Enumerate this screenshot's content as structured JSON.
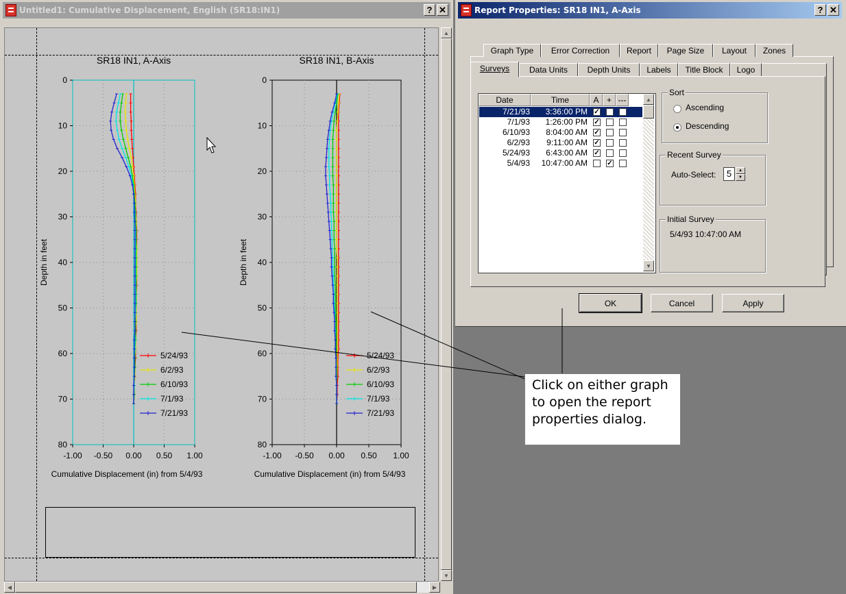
{
  "document_window": {
    "title": "Untitled1: Cumulative Displacement, English (SR18:IN1)",
    "help_button": "?",
    "close_button": "✕"
  },
  "charts": [
    {
      "title": "SR18 IN1, A-Axis",
      "ylabel": "Depth in feet",
      "xlabel": "Cumulative Displacement (in) from 5/4/93",
      "yticks": [
        "0",
        "10",
        "20",
        "30",
        "40",
        "50",
        "60",
        "70",
        "80"
      ],
      "xticks": [
        "-1.00",
        "-0.50",
        "0.00",
        "0.50",
        "1.00"
      ]
    },
    {
      "title": "SR18 IN1, B-Axis",
      "ylabel": "Depth in feet",
      "xlabel": "Cumulative Displacement (in) from 5/4/93",
      "yticks": [
        "0",
        "10",
        "20",
        "30",
        "40",
        "50",
        "60",
        "70",
        "80"
      ],
      "xticks": [
        "-1.00",
        "-0.50",
        "0.00",
        "0.50",
        "1.00"
      ]
    }
  ],
  "chart_data": [
    {
      "type": "line",
      "title": "SR18 IN1, A-Axis",
      "xlabel": "Cumulative Displacement (in) from 5/4/93",
      "ylabel": "Depth in feet",
      "xlim": [
        -1.0,
        1.0
      ],
      "ylim": [
        0,
        80
      ],
      "y_inverted": true,
      "grid": true,
      "legend": "bottom-right",
      "depth": [
        3,
        5,
        7,
        9,
        11,
        13,
        15,
        17,
        19,
        21,
        23,
        25,
        27,
        29,
        31,
        33,
        35,
        37,
        39,
        41,
        43,
        45,
        47,
        49,
        51,
        53,
        55,
        57,
        59,
        61,
        63,
        65,
        67,
        69,
        71
      ],
      "series": [
        {
          "name": "5/24/93",
          "color": "#ff0000",
          "values": [
            -0.05,
            -0.05,
            -0.05,
            -0.04,
            -0.04,
            -0.03,
            -0.02,
            -0.01,
            0.0,
            0.01,
            0.02,
            0.03,
            0.03,
            0.04,
            0.04,
            0.05,
            0.05,
            0.05,
            0.05,
            0.05,
            0.05,
            0.05,
            0.04,
            0.04,
            0.04,
            0.04,
            0.04,
            0.03,
            0.03,
            0.03,
            0.02,
            0.02,
            0.01,
            0.01,
            0.0
          ]
        },
        {
          "name": "6/2/93",
          "color": "#e8e800",
          "values": [
            -0.12,
            -0.13,
            -0.14,
            -0.13,
            -0.12,
            -0.1,
            -0.07,
            -0.04,
            -0.02,
            0.0,
            0.01,
            0.02,
            0.03,
            0.03,
            0.04,
            0.04,
            0.04,
            0.05,
            0.05,
            0.05,
            0.05,
            0.04,
            0.04,
            0.04,
            0.04,
            0.04,
            0.03,
            0.03,
            0.03,
            0.02,
            0.02,
            0.02,
            0.01,
            0.01,
            0.0
          ]
        },
        {
          "name": "6/10/93",
          "color": "#00cc00",
          "values": [
            -0.18,
            -0.2,
            -0.22,
            -0.22,
            -0.2,
            -0.17,
            -0.13,
            -0.09,
            -0.05,
            -0.02,
            0.0,
            0.01,
            0.02,
            0.03,
            0.03,
            0.04,
            0.04,
            0.04,
            0.04,
            0.04,
            0.04,
            0.04,
            0.04,
            0.04,
            0.03,
            0.03,
            0.03,
            0.03,
            0.02,
            0.02,
            0.02,
            0.01,
            0.01,
            0.01,
            0.0
          ]
        },
        {
          "name": "7/1/93",
          "color": "#00e8e8",
          "values": [
            -0.22,
            -0.25,
            -0.28,
            -0.29,
            -0.27,
            -0.24,
            -0.19,
            -0.13,
            -0.08,
            -0.04,
            -0.01,
            0.0,
            0.01,
            0.02,
            0.02,
            0.03,
            0.03,
            0.03,
            0.03,
            0.03,
            0.03,
            0.03,
            0.03,
            0.03,
            0.03,
            0.02,
            0.02,
            0.02,
            0.02,
            0.01,
            0.01,
            0.01,
            0.01,
            0.0,
            0.0
          ]
        },
        {
          "name": "7/21/93",
          "color": "#2020d0",
          "values": [
            -0.28,
            -0.32,
            -0.36,
            -0.38,
            -0.37,
            -0.33,
            -0.27,
            -0.19,
            -0.12,
            -0.06,
            -0.02,
            0.0,
            0.01,
            0.01,
            0.02,
            0.02,
            0.02,
            0.02,
            0.02,
            0.02,
            0.02,
            0.02,
            0.02,
            0.02,
            0.02,
            0.02,
            0.02,
            0.01,
            0.01,
            0.01,
            0.01,
            0.01,
            0.0,
            0.0,
            0.0
          ]
        }
      ]
    },
    {
      "type": "line",
      "title": "SR18 IN1, B-Axis",
      "xlabel": "Cumulative Displacement (in) from 5/4/93",
      "ylabel": "Depth in feet",
      "xlim": [
        -1.0,
        1.0
      ],
      "ylim": [
        0,
        80
      ],
      "y_inverted": true,
      "grid": true,
      "legend": "bottom-right",
      "depth": [
        3,
        5,
        7,
        9,
        11,
        13,
        15,
        17,
        19,
        21,
        23,
        25,
        27,
        29,
        31,
        33,
        35,
        37,
        39,
        41,
        43,
        45,
        47,
        49,
        51,
        53,
        55,
        57,
        59,
        61,
        63,
        65,
        67,
        69,
        71
      ],
      "series": [
        {
          "name": "5/24/93",
          "color": "#ff0000",
          "values": [
            0.05,
            0.04,
            0.03,
            0.03,
            0.03,
            0.03,
            0.03,
            0.03,
            0.03,
            0.03,
            0.03,
            0.03,
            0.03,
            0.03,
            0.03,
            0.03,
            0.03,
            0.03,
            0.03,
            0.03,
            0.03,
            0.03,
            0.03,
            0.03,
            0.03,
            0.03,
            0.03,
            0.03,
            0.03,
            0.02,
            0.02,
            0.02,
            0.01,
            0.01,
            0.0
          ]
        },
        {
          "name": "6/2/93",
          "color": "#e8e800",
          "values": [
            0.04,
            0.03,
            0.02,
            0.01,
            0.0,
            0.0,
            0.0,
            0.0,
            0.0,
            0.0,
            0.0,
            0.0,
            0.0,
            0.0,
            0.0,
            0.0,
            0.0,
            0.0,
            0.01,
            0.01,
            0.01,
            0.01,
            0.01,
            0.01,
            0.01,
            0.01,
            0.01,
            0.01,
            0.01,
            0.01,
            0.01,
            0.0,
            0.0,
            0.0,
            0.0
          ]
        },
        {
          "name": "6/10/93",
          "color": "#00cc00",
          "values": [
            0.02,
            0.0,
            -0.02,
            -0.04,
            -0.05,
            -0.06,
            -0.06,
            -0.06,
            -0.06,
            -0.06,
            -0.05,
            -0.05,
            -0.05,
            -0.05,
            -0.04,
            -0.04,
            -0.04,
            -0.03,
            -0.03,
            -0.03,
            -0.03,
            -0.02,
            -0.02,
            -0.02,
            -0.02,
            -0.01,
            -0.01,
            -0.01,
            -0.01,
            -0.01,
            0.0,
            0.0,
            0.0,
            0.0,
            0.0
          ]
        },
        {
          "name": "7/1/93",
          "color": "#00e8e8",
          "values": [
            0.01,
            -0.02,
            -0.05,
            -0.08,
            -0.1,
            -0.11,
            -0.12,
            -0.12,
            -0.12,
            -0.11,
            -0.11,
            -0.1,
            -0.09,
            -0.09,
            -0.08,
            -0.08,
            -0.07,
            -0.07,
            -0.06,
            -0.06,
            -0.05,
            -0.05,
            -0.04,
            -0.04,
            -0.03,
            -0.03,
            -0.02,
            -0.02,
            -0.02,
            -0.01,
            -0.01,
            -0.01,
            0.0,
            0.0,
            0.0
          ]
        },
        {
          "name": "7/21/93",
          "color": "#2020d0",
          "values": [
            0.0,
            -0.03,
            -0.07,
            -0.1,
            -0.12,
            -0.14,
            -0.15,
            -0.16,
            -0.17,
            -0.17,
            -0.16,
            -0.15,
            -0.14,
            -0.13,
            -0.12,
            -0.11,
            -0.1,
            -0.09,
            -0.08,
            -0.08,
            -0.07,
            -0.06,
            -0.05,
            -0.05,
            -0.04,
            -0.03,
            -0.03,
            -0.02,
            -0.02,
            -0.01,
            -0.01,
            -0.01,
            0.0,
            0.0,
            0.0
          ]
        }
      ]
    }
  ],
  "dialog": {
    "title": "Report Properties: SR18 IN1, A-Axis",
    "help_button": "?",
    "close_button": "✕",
    "tabs_back": [
      "Graph Type",
      "Error Correction",
      "Report",
      "Page Size",
      "Layout",
      "Zones"
    ],
    "tabs_front": [
      "Surveys",
      "Data Units",
      "Depth Units",
      "Labels",
      "Title Block",
      "Logo"
    ],
    "active_tab": "Surveys",
    "survey_columns": [
      "Date",
      "Time",
      "A",
      "+",
      "---"
    ],
    "surveys": [
      {
        "date": "7/21/93",
        "time": "3:36:00 PM",
        "a": true,
        "plus": false,
        "dash": false,
        "selected": true
      },
      {
        "date": "7/1/93",
        "time": "1:26:00 PM",
        "a": true,
        "plus": false,
        "dash": false,
        "selected": false
      },
      {
        "date": "6/10/93",
        "time": "8:04:00 AM",
        "a": true,
        "plus": false,
        "dash": false,
        "selected": false
      },
      {
        "date": "6/2/93",
        "time": "9:11:00 AM",
        "a": true,
        "plus": false,
        "dash": false,
        "selected": false
      },
      {
        "date": "5/24/93",
        "time": "6:43:00 AM",
        "a": true,
        "plus": false,
        "dash": false,
        "selected": false
      },
      {
        "date": "5/4/93",
        "time": "10:47:00 AM",
        "a": false,
        "plus": true,
        "dash": false,
        "selected": false
      }
    ],
    "sort": {
      "label": "Sort",
      "ascending": "Ascending",
      "descending": "Descending",
      "selected": "Descending"
    },
    "recent_survey": {
      "label": "Recent Survey",
      "auto_select_label": "Auto-Select:",
      "auto_select_value": "5"
    },
    "initial_survey": {
      "label": "Initial Survey",
      "value": "5/4/93 10:47:00 AM"
    },
    "buttons": {
      "ok": "OK",
      "cancel": "Cancel",
      "apply": "Apply"
    }
  },
  "annotation": {
    "text": "Click on either graph to open the report properties dialog."
  },
  "icons": {
    "app": "report-app-icon",
    "cursor": "mouse-pointer-icon"
  },
  "colors": {
    "dialog_bg": "#d4d0c8",
    "title_active": "#0a246a",
    "title_inactive": "#a0a0a0",
    "workspace": "#7b7b7b"
  }
}
